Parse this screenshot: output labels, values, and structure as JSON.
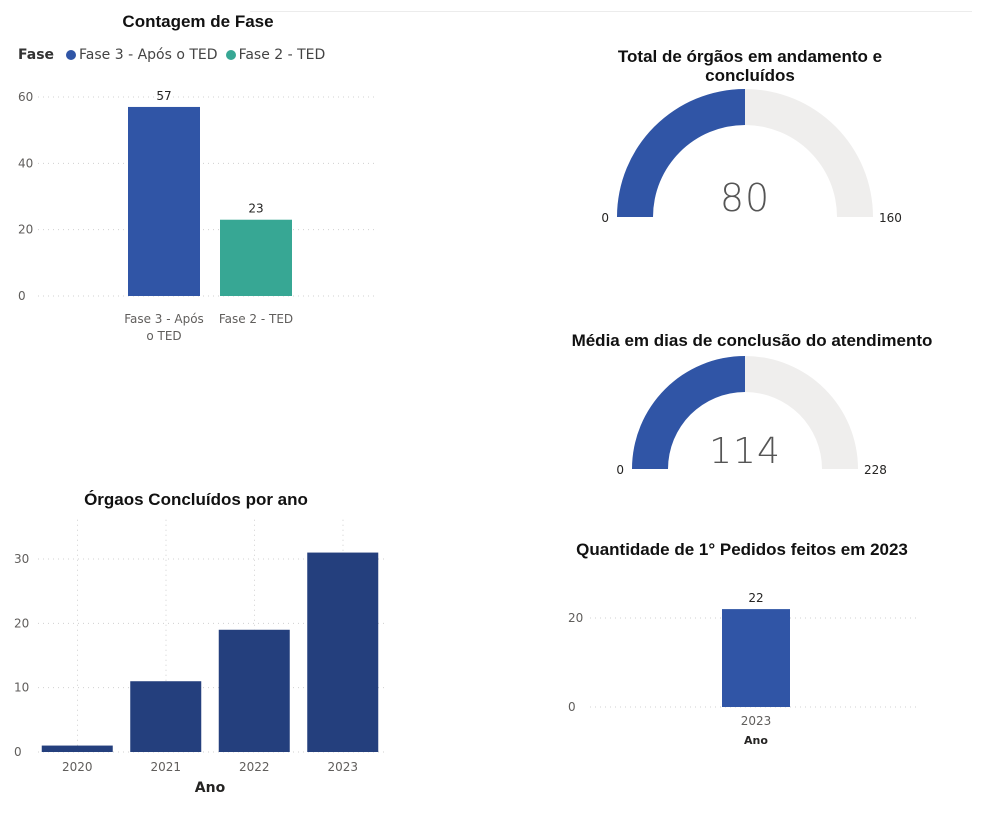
{
  "colors": {
    "phase3": "#3055A6",
    "phase2": "#37A794",
    "year_bars": "#243F7D",
    "gauge_fill": "#3055A6",
    "gauge_track": "#EFEEED",
    "grid": "#D0D0D0",
    "axis_text": "#605E5C"
  },
  "chart_data": [
    {
      "id": "fase",
      "type": "bar",
      "title": "Contagem de Fase",
      "legend_title": "Fase",
      "legend": [
        "Fase 3 - Após o TED",
        "Fase 2 - TED"
      ],
      "categories": [
        "Fase 3 - Após o TED",
        "Fase 2 - TED"
      ],
      "category_lines": [
        [
          "Fase 3 - Após",
          "o TED"
        ],
        [
          "Fase 2 - TED"
        ]
      ],
      "values": [
        57,
        23
      ],
      "data_labels": [
        "57",
        "23"
      ],
      "yticks": [
        0,
        20,
        40,
        60
      ],
      "ylim": [
        0,
        65
      ]
    },
    {
      "id": "gauge_total",
      "type": "gauge",
      "title": "Total de órgãos em andamento e concluídos",
      "title_lines": [
        "Total de órgãos em andamento e",
        "concluídos"
      ],
      "value": 80,
      "value_label": "80",
      "min": 0,
      "max": 160,
      "min_label": "0",
      "max_label": "160"
    },
    {
      "id": "gauge_media",
      "type": "gauge",
      "title": "Média em dias de conclusão do atendimento",
      "value": 114,
      "value_label": "114",
      "min": 0,
      "max": 228,
      "min_label": "0",
      "max_label": "228"
    },
    {
      "id": "ano",
      "type": "bar",
      "title": "Órgaos Concluídos por ano",
      "xlabel": "Ano",
      "categories": [
        "2020",
        "2021",
        "2022",
        "2023"
      ],
      "values": [
        1,
        11,
        19,
        31
      ],
      "yticks": [
        0,
        10,
        20,
        30
      ],
      "ylim": [
        0,
        33
      ]
    },
    {
      "id": "pedidos",
      "type": "bar",
      "title": "Quantidade de 1° Pedidos feitos em 2023",
      "xlabel": "Ano",
      "categories": [
        "2023"
      ],
      "values": [
        22
      ],
      "data_labels": [
        "22"
      ],
      "yticks": [
        0,
        20
      ],
      "ylim": [
        0,
        26
      ]
    }
  ]
}
